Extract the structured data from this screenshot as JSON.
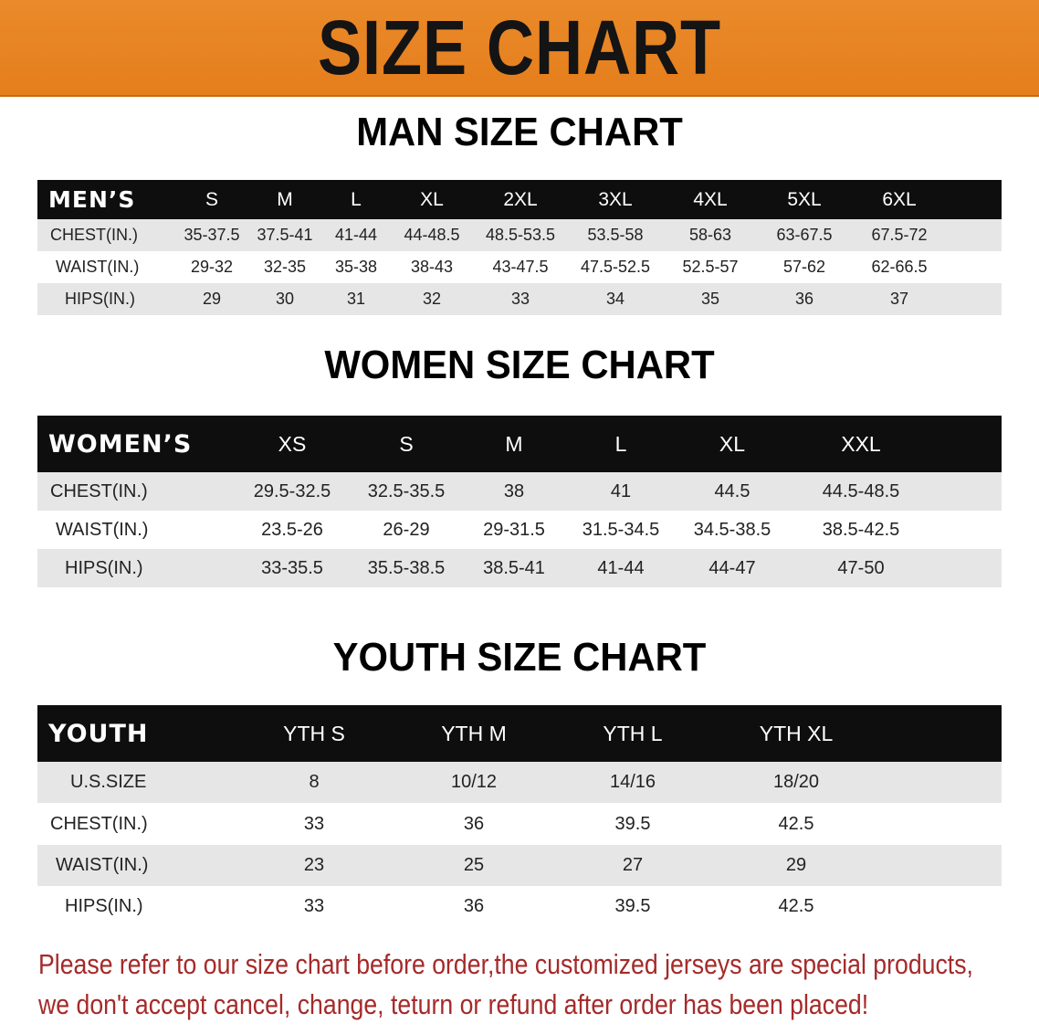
{
  "banner": {
    "title": "SIZE CHART",
    "color": "#e8841f"
  },
  "men": {
    "title": "MAN SIZE CHART",
    "header": [
      "MEN’S",
      "S",
      "M",
      "L",
      "XL",
      "2XL",
      "3XL",
      "4XL",
      "5XL",
      "6XL"
    ],
    "rows": [
      [
        "CHEST(IN.)",
        "35-37.5",
        "37.5-41",
        "41-44",
        "44-48.5",
        "48.5-53.5",
        "53.5-58",
        "58-63",
        "63-67.5",
        "67.5-72"
      ],
      [
        "WAIST(IN.)",
        "29-32",
        "32-35",
        "35-38",
        "38-43",
        "43-47.5",
        "47.5-52.5",
        "52.5-57",
        "57-62",
        "62-66.5"
      ],
      [
        "HIPS(IN.)",
        "29",
        "30",
        "31",
        "32",
        "33",
        "34",
        "35",
        "36",
        "37"
      ]
    ]
  },
  "women": {
    "title": "WOMEN SIZE CHART",
    "header": [
      "WOMEN’S",
      "XS",
      "S",
      "M",
      "L",
      "XL",
      "XXL"
    ],
    "rows": [
      [
        "CHEST(IN.)",
        "29.5-32.5",
        "32.5-35.5",
        "38",
        "41",
        "44.5",
        "44.5-48.5"
      ],
      [
        "WAIST(IN.)",
        "23.5-26",
        "26-29",
        "29-31.5",
        "31.5-34.5",
        "34.5-38.5",
        "38.5-42.5"
      ],
      [
        "HIPS(IN.)",
        "33-35.5",
        "35.5-38.5",
        "38.5-41",
        "41-44",
        "44-47",
        "47-50"
      ]
    ]
  },
  "youth": {
    "title": "YOUTH SIZE CHART",
    "header": [
      "YOUTH",
      "YTH S",
      "YTH M",
      "YTH L",
      "YTH XL"
    ],
    "rows": [
      [
        "U.S.SIZE",
        "8",
        "10/12",
        "14/16",
        "18/20"
      ],
      [
        "CHEST(IN.)",
        "33",
        "36",
        "39.5",
        "42.5"
      ],
      [
        "WAIST(IN.)",
        "23",
        "25",
        "27",
        "29"
      ],
      [
        "HIPS(IN.)",
        "33",
        "36",
        "39.5",
        "42.5"
      ]
    ]
  },
  "notice": {
    "line1": "Please refer to our size chart before order,the customized jerseys are special products,",
    "line2": "we don't accept cancel, change, teturn or refund after order has been placed!",
    "color": "#a52a2a"
  }
}
